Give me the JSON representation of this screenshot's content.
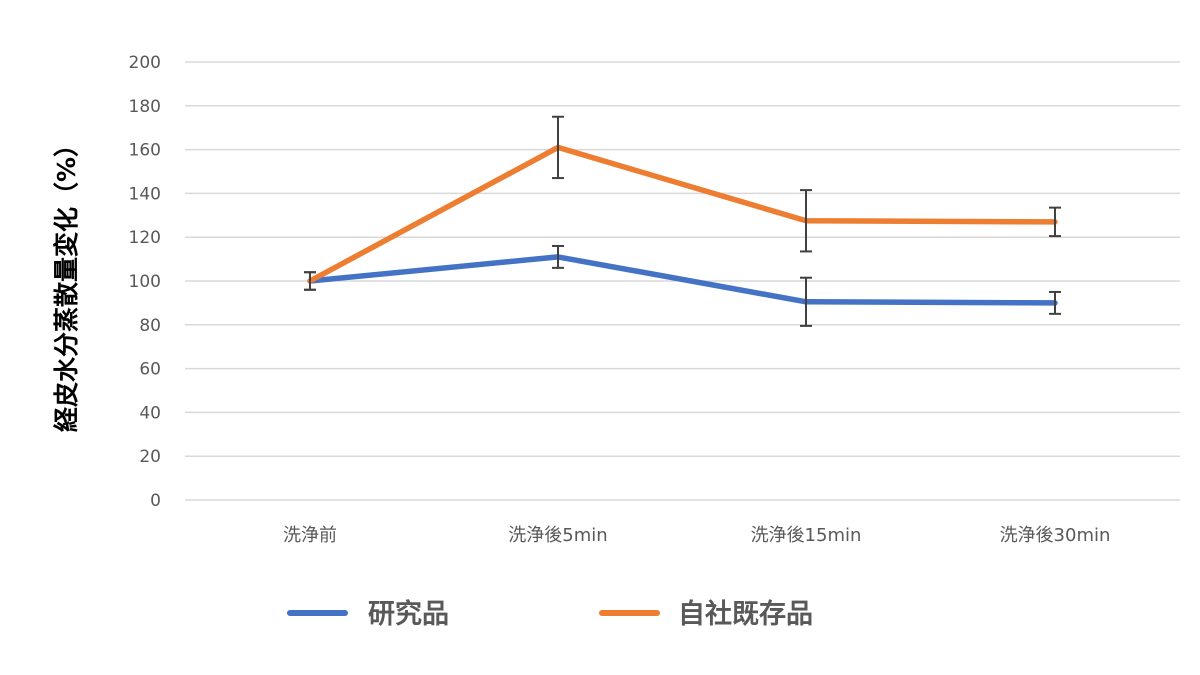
{
  "chart_data": {
    "type": "line",
    "title": "",
    "xlabel": "",
    "ylabel": "経皮水分蒸散量変化（%）",
    "categories": [
      "洗浄前",
      "洗浄後5min",
      "洗浄後15min",
      "洗浄後30min"
    ],
    "ylim": [
      0,
      200
    ],
    "yticks": [
      "0",
      "20",
      "40",
      "60",
      "80",
      "100",
      "120",
      "140",
      "160",
      "180",
      "200"
    ],
    "grid": true,
    "legend_position": "bottom",
    "series": [
      {
        "name": "研究品",
        "color": "#4472c4",
        "values": [
          100,
          111,
          90.5,
          90
        ],
        "error": [
          4,
          5,
          11,
          5
        ]
      },
      {
        "name": "自社既存品",
        "color": "#ed7d31",
        "values": [
          100,
          161,
          127.5,
          127
        ],
        "error": [
          4,
          14,
          14,
          6.5
        ]
      }
    ]
  }
}
